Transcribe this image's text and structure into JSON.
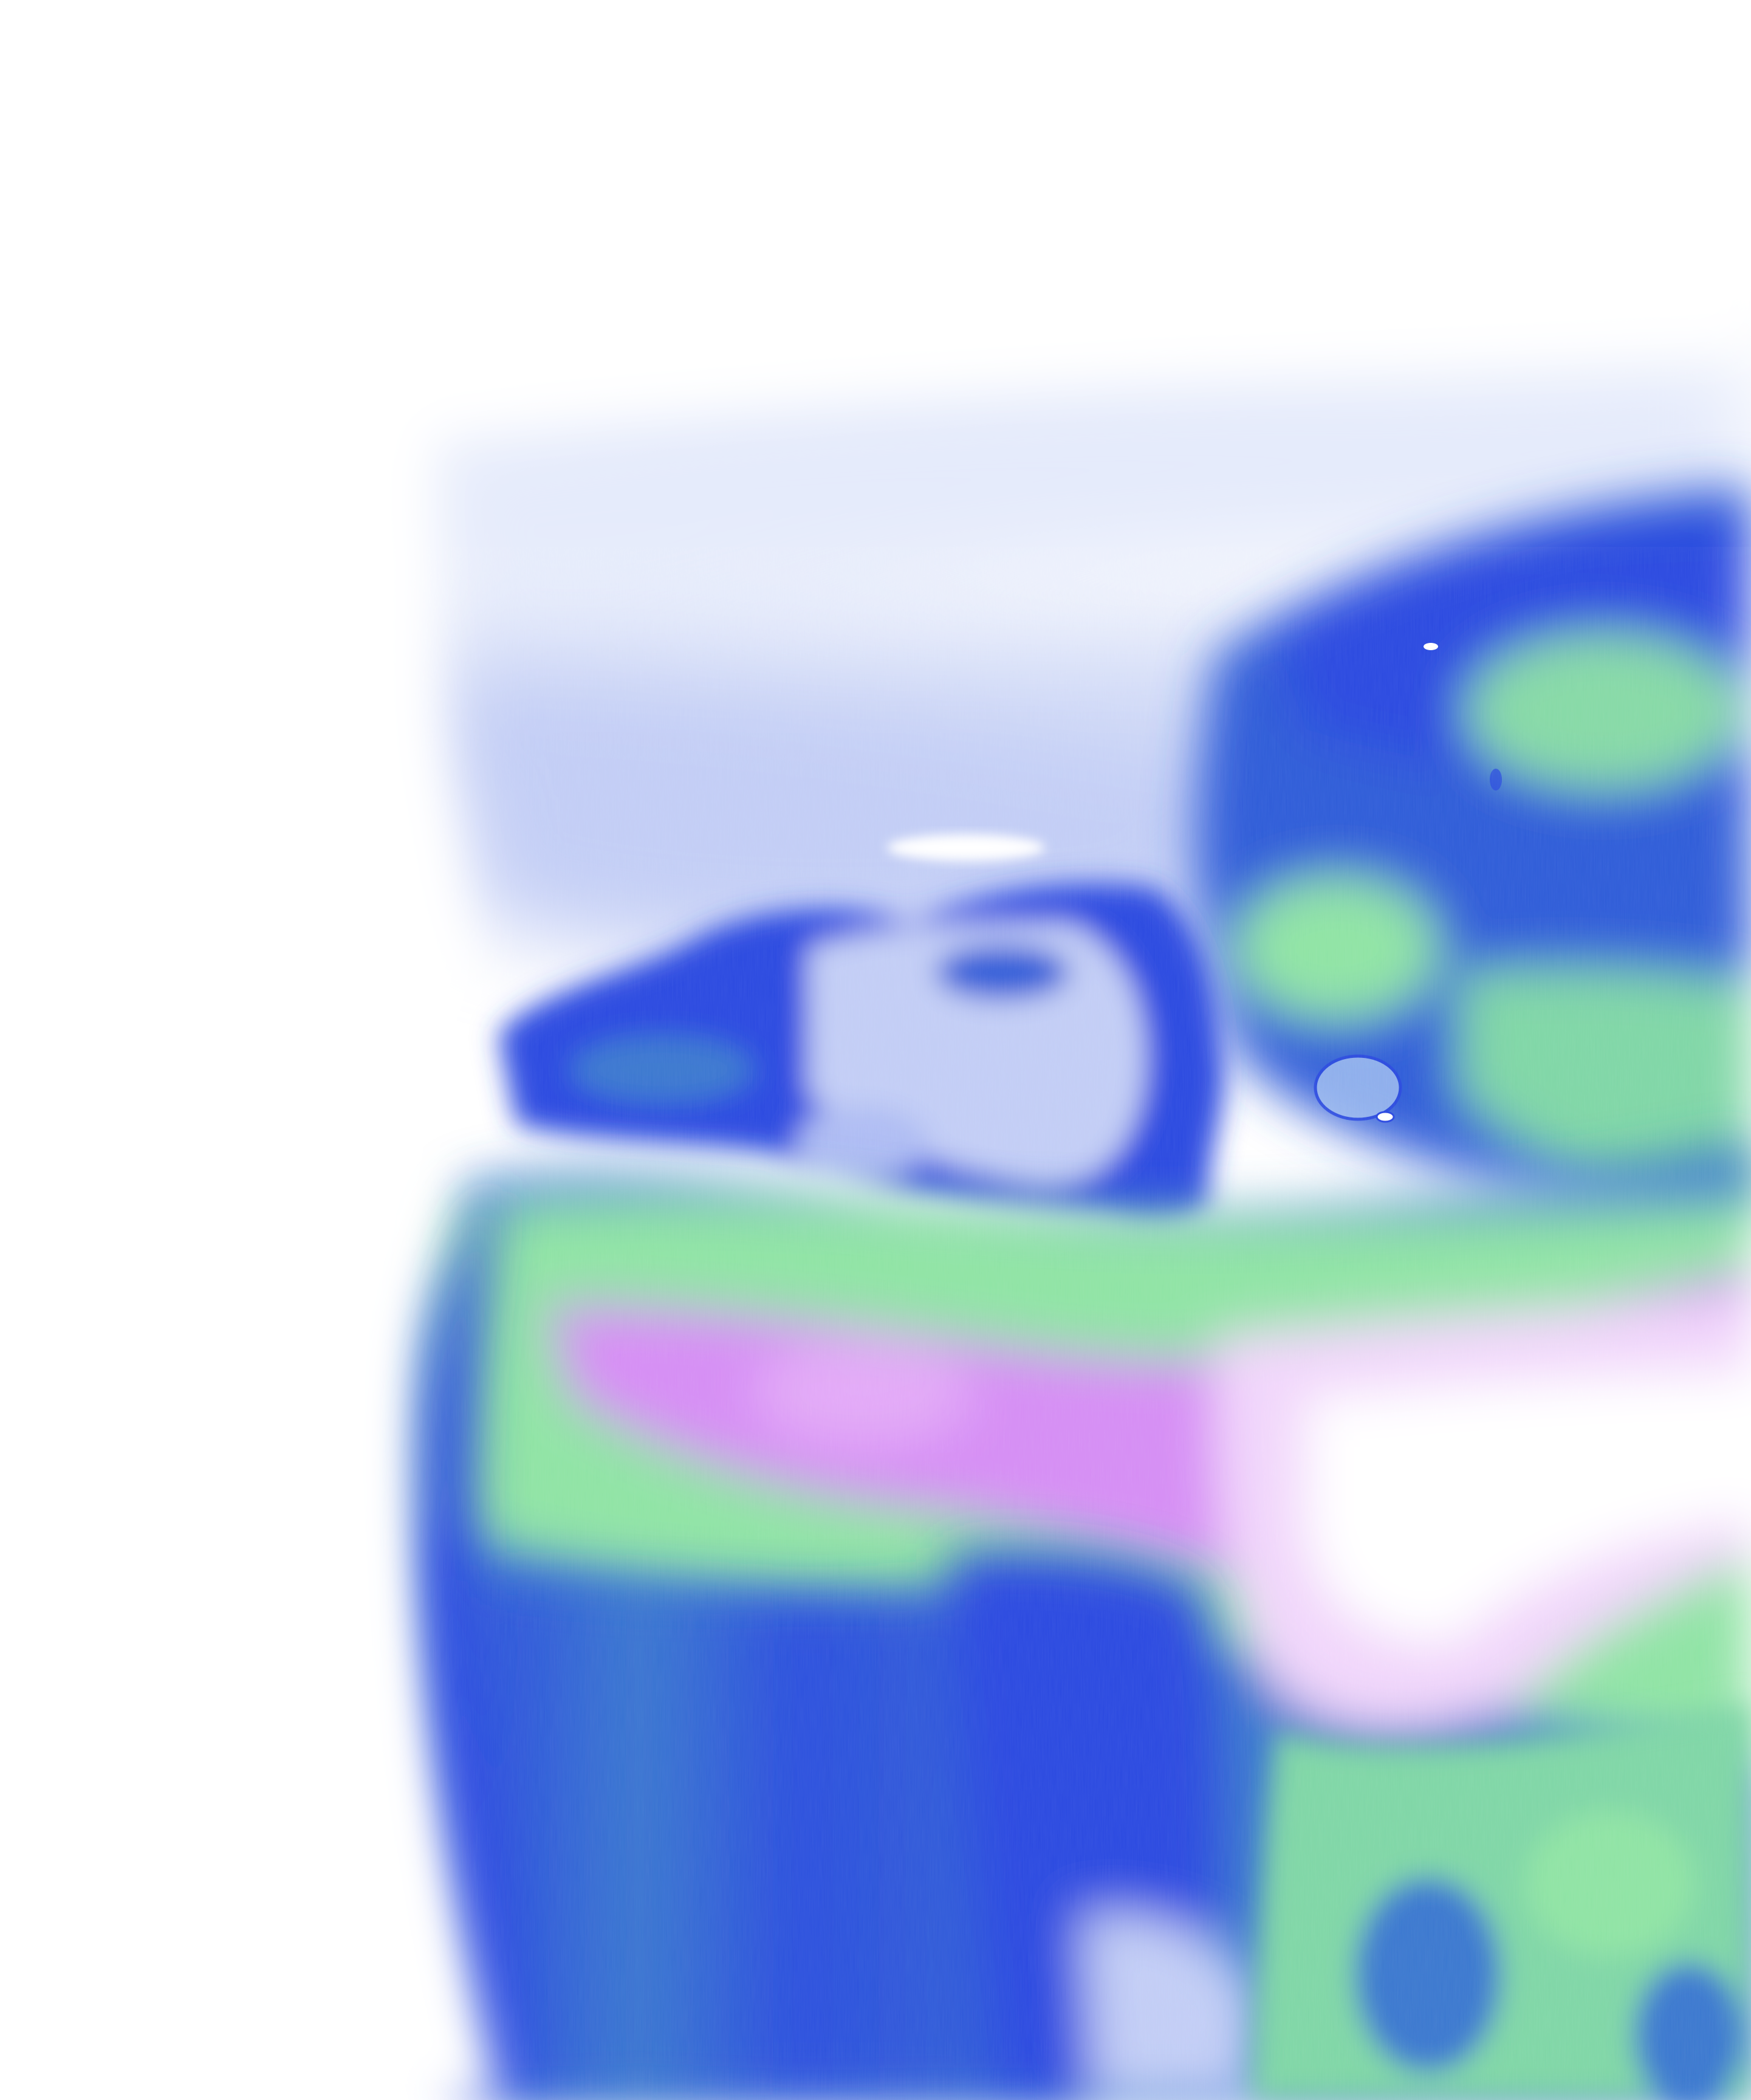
{
  "image": {
    "kind": "abstract false-color fluid image",
    "colors": {
      "background": "#ffffff",
      "haze": "#c9d3f6",
      "pale_blue": "#aebcf3",
      "deep_blue": "#2a48e0",
      "royal_blue": "#2f5bd8",
      "steel_blue": "#3a78cf",
      "green": "#8fe3a4",
      "light_green": "#a7ecb3",
      "violet": "#d58df4",
      "pale_violet": "#f1d6fb",
      "white_glow": "#ffffff"
    }
  }
}
